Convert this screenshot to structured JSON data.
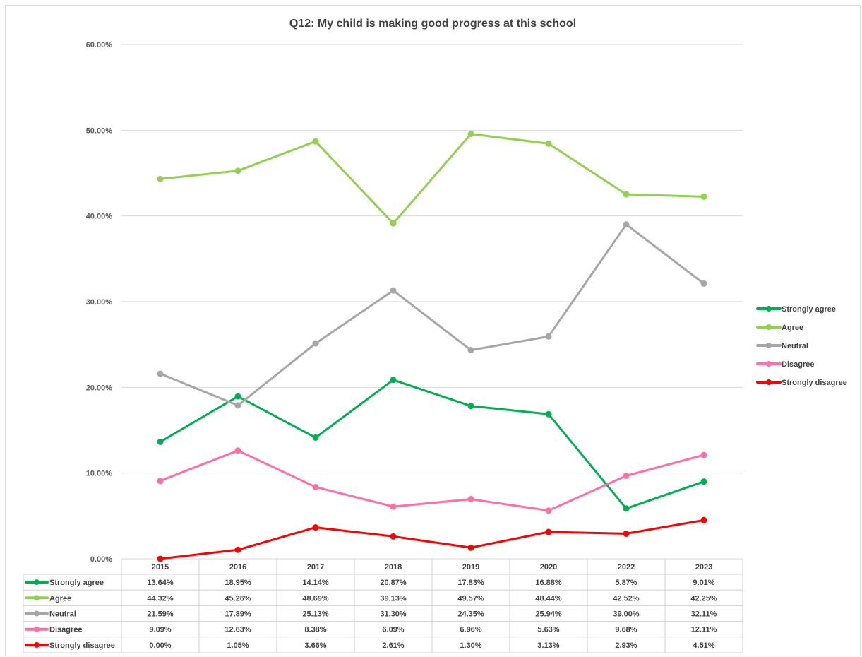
{
  "chart_data": {
    "type": "line",
    "title": "Q12: My child is making good progress at this school",
    "xlabel": "",
    "ylabel": "",
    "categories": [
      "2015",
      "2016",
      "2017",
      "2018",
      "2019",
      "2020",
      "2022",
      "2023"
    ],
    "ylim": [
      0,
      60
    ],
    "yticks": [
      "0.00%",
      "10.00%",
      "20.00%",
      "30.00%",
      "40.00%",
      "50.00%",
      "60.00%"
    ],
    "grid": true,
    "legend_position": "right",
    "data_table": true,
    "series": [
      {
        "name": "Strongly agree",
        "color": "#00b050",
        "values": [
          13.64,
          18.95,
          14.14,
          20.87,
          17.83,
          16.88,
          5.87,
          9.01
        ],
        "labels": [
          "13.64%",
          "18.95%",
          "14.14%",
          "20.87%",
          "17.83%",
          "16.88%",
          "5.87%",
          "9.01%"
        ]
      },
      {
        "name": "Agree",
        "color": "#92d050",
        "values": [
          44.32,
          45.26,
          48.69,
          39.13,
          49.57,
          48.44,
          42.52,
          42.25
        ],
        "labels": [
          "44.32%",
          "45.26%",
          "48.69%",
          "39.13%",
          "49.57%",
          "48.44%",
          "42.52%",
          "42.25%"
        ]
      },
      {
        "name": "Neutral",
        "color": "#a6a6a6",
        "values": [
          21.59,
          17.89,
          25.13,
          31.3,
          24.35,
          25.94,
          39.0,
          32.11
        ],
        "labels": [
          "21.59%",
          "17.89%",
          "25.13%",
          "31.30%",
          "24.35%",
          "25.94%",
          "39.00%",
          "32.11%"
        ]
      },
      {
        "name": "Disagree",
        "color": "#ff6fa6",
        "values": [
          9.09,
          12.63,
          8.38,
          6.09,
          6.96,
          5.63,
          9.68,
          12.11
        ],
        "labels": [
          "9.09%",
          "12.63%",
          "8.38%",
          "6.09%",
          "6.96%",
          "5.63%",
          "9.68%",
          "12.11%"
        ]
      },
      {
        "name": "Strongly disagree",
        "color": "#ff0000",
        "values": [
          0.0,
          1.05,
          3.66,
          2.61,
          1.3,
          3.13,
          2.93,
          4.51
        ],
        "labels": [
          "0.00%",
          "1.05%",
          "3.66%",
          "2.61%",
          "1.30%",
          "3.13%",
          "2.93%",
          "4.51%"
        ]
      }
    ]
  }
}
